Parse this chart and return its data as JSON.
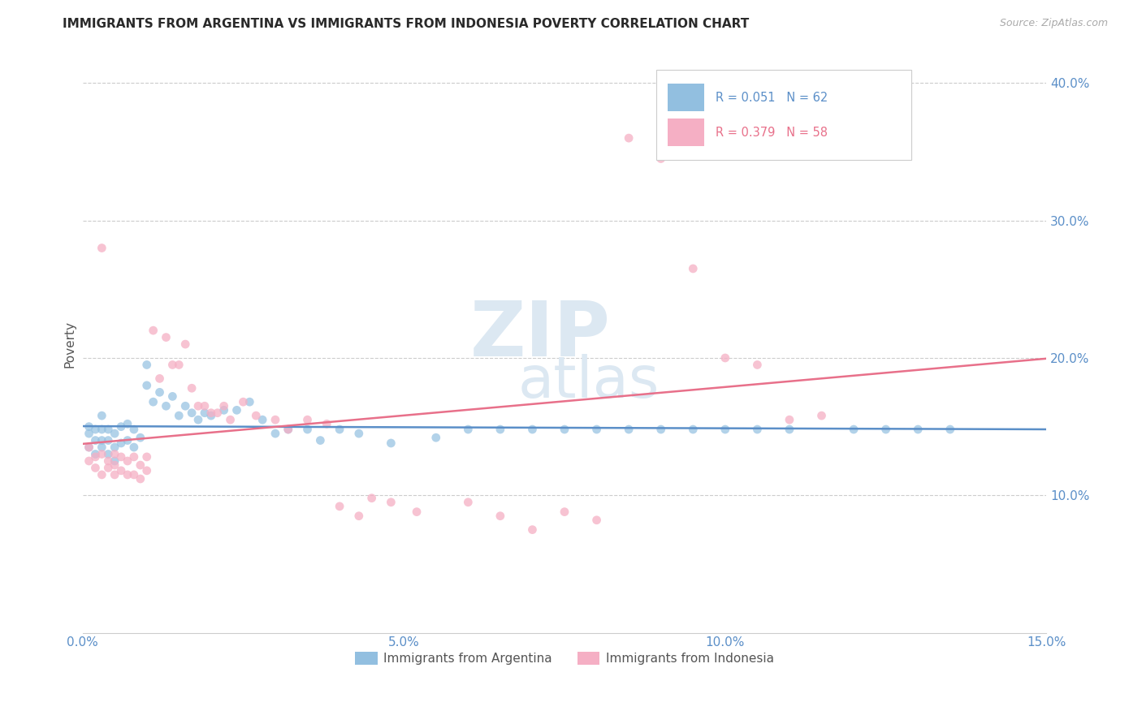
{
  "title": "IMMIGRANTS FROM ARGENTINA VS IMMIGRANTS FROM INDONESIA POVERTY CORRELATION CHART",
  "source": "Source: ZipAtlas.com",
  "ylabel": "Poverty",
  "argentina_R": "0.051",
  "argentina_N": "62",
  "indonesia_R": "0.379",
  "indonesia_N": "58",
  "xlim": [
    0.0,
    0.15
  ],
  "ylim": [
    0.0,
    0.42
  ],
  "xticks": [
    0.0,
    0.05,
    0.1,
    0.15
  ],
  "xticklabels": [
    "0.0%",
    "5.0%",
    "10.0%",
    "15.0%"
  ],
  "yticks": [
    0.1,
    0.2,
    0.3,
    0.4
  ],
  "yticklabels": [
    "10.0%",
    "20.0%",
    "30.0%",
    "40.0%"
  ],
  "argentina_color": "#92bfe0",
  "indonesia_color": "#f5afc4",
  "argentina_line_color": "#5b8fc8",
  "indonesia_line_color": "#e8708a",
  "title_color": "#2a2a2a",
  "axis_tick_color": "#5b8fc8",
  "grid_color": "#cccccc",
  "watermark_color": "#dce8f2",
  "argentina_x": [
    0.001,
    0.001,
    0.001,
    0.002,
    0.002,
    0.002,
    0.003,
    0.003,
    0.003,
    0.003,
    0.004,
    0.004,
    0.004,
    0.005,
    0.005,
    0.005,
    0.006,
    0.006,
    0.007,
    0.007,
    0.008,
    0.008,
    0.009,
    0.01,
    0.01,
    0.011,
    0.012,
    0.013,
    0.014,
    0.015,
    0.016,
    0.017,
    0.018,
    0.019,
    0.02,
    0.022,
    0.024,
    0.026,
    0.028,
    0.03,
    0.032,
    0.035,
    0.037,
    0.04,
    0.043,
    0.048,
    0.055,
    0.06,
    0.065,
    0.07,
    0.075,
    0.08,
    0.085,
    0.09,
    0.095,
    0.1,
    0.105,
    0.11,
    0.12,
    0.125,
    0.13,
    0.135
  ],
  "argentina_y": [
    0.135,
    0.145,
    0.15,
    0.13,
    0.14,
    0.148,
    0.135,
    0.14,
    0.148,
    0.158,
    0.13,
    0.14,
    0.148,
    0.125,
    0.135,
    0.145,
    0.138,
    0.15,
    0.14,
    0.152,
    0.135,
    0.148,
    0.142,
    0.18,
    0.195,
    0.168,
    0.175,
    0.165,
    0.172,
    0.158,
    0.165,
    0.16,
    0.155,
    0.16,
    0.158,
    0.162,
    0.162,
    0.168,
    0.155,
    0.145,
    0.148,
    0.148,
    0.14,
    0.148,
    0.145,
    0.138,
    0.142,
    0.148,
    0.148,
    0.148,
    0.148,
    0.148,
    0.148,
    0.148,
    0.148,
    0.148,
    0.148,
    0.148,
    0.148,
    0.148,
    0.148,
    0.148
  ],
  "indonesia_x": [
    0.001,
    0.001,
    0.002,
    0.002,
    0.003,
    0.003,
    0.003,
    0.004,
    0.004,
    0.005,
    0.005,
    0.005,
    0.006,
    0.006,
    0.007,
    0.007,
    0.008,
    0.008,
    0.009,
    0.009,
    0.01,
    0.01,
    0.011,
    0.012,
    0.013,
    0.014,
    0.015,
    0.016,
    0.017,
    0.018,
    0.019,
    0.02,
    0.021,
    0.022,
    0.023,
    0.025,
    0.027,
    0.03,
    0.032,
    0.035,
    0.038,
    0.04,
    0.043,
    0.045,
    0.048,
    0.052,
    0.06,
    0.065,
    0.07,
    0.075,
    0.08,
    0.085,
    0.09,
    0.095,
    0.1,
    0.105,
    0.11,
    0.115
  ],
  "indonesia_y": [
    0.125,
    0.135,
    0.12,
    0.128,
    0.115,
    0.28,
    0.13,
    0.12,
    0.125,
    0.115,
    0.122,
    0.13,
    0.118,
    0.128,
    0.115,
    0.125,
    0.115,
    0.128,
    0.112,
    0.122,
    0.118,
    0.128,
    0.22,
    0.185,
    0.215,
    0.195,
    0.195,
    0.21,
    0.178,
    0.165,
    0.165,
    0.16,
    0.16,
    0.165,
    0.155,
    0.168,
    0.158,
    0.155,
    0.148,
    0.155,
    0.152,
    0.092,
    0.085,
    0.098,
    0.095,
    0.088,
    0.095,
    0.085,
    0.075,
    0.088,
    0.082,
    0.36,
    0.345,
    0.265,
    0.2,
    0.195,
    0.155,
    0.158
  ]
}
